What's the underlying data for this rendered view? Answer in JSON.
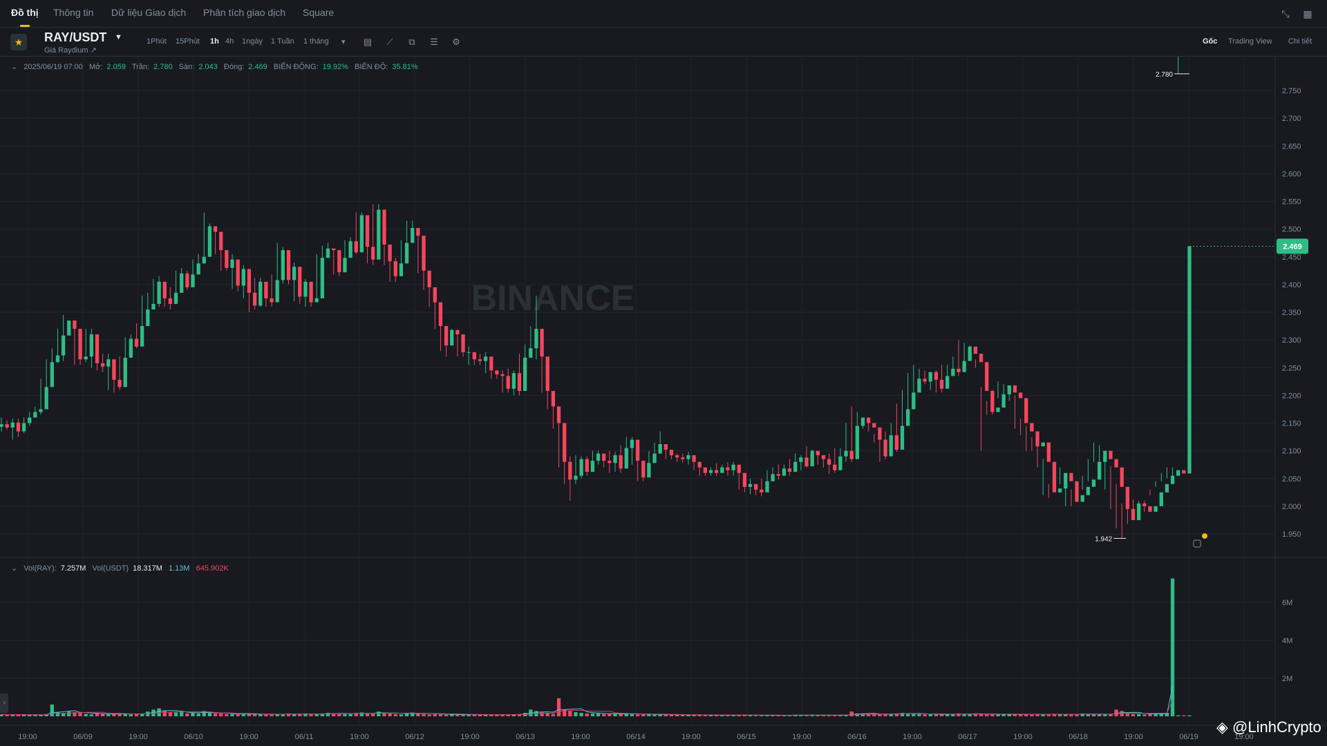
{
  "tabs": [
    {
      "label": "Đồ thị",
      "active": true
    },
    {
      "label": "Thông tin",
      "active": false
    },
    {
      "label": "Dữ liệu Giao dịch",
      "active": false
    },
    {
      "label": "Phân tích giao dịch",
      "active": false
    },
    {
      "label": "Square",
      "active": false
    }
  ],
  "pair": {
    "name": "RAY/USDT",
    "subtitle": "Giá Raydium ↗"
  },
  "intervals": [
    "1Phút",
    "15Phút",
    "1h",
    "4h",
    "1ngày",
    "1 Tuần",
    "1 tháng"
  ],
  "active_interval": "1h",
  "view_modes": [
    "Gốc",
    "Trading View",
    "Chi tiết"
  ],
  "active_view": "Gốc",
  "ohlc": {
    "date": "2025/06/19 07:00",
    "open_label": "Mở:",
    "open": "2.059",
    "high_label": "Trần:",
    "high": "2.780",
    "low_label": "Sàn:",
    "low": "2.043",
    "close_label": "Đóng:",
    "close": "2.469",
    "change_label": "BIẾN ĐỘNG:",
    "change": "19.92%",
    "amplitude_label": "BIÊN ĐỘ:",
    "amplitude": "35.81%"
  },
  "volume_legend": {
    "ray_label": "Vol(RAY):",
    "ray": "7.257M",
    "usdt_label": "Vol(USDT)",
    "usdt": "18.317M",
    "ma1": "1.13M",
    "ma2": "645.902K"
  },
  "watermark_brand": "BINANCE",
  "credit": "@LinhCrypto",
  "colors": {
    "up": "#2ebd85",
    "down": "#f6465d",
    "accent": "#f0b90b",
    "background": "#181a20"
  },
  "icons": [
    "star-icon",
    "caret-down-icon",
    "calendar-icon",
    "indicator-icon",
    "candle-type-icon",
    "layout-icon",
    "settings-icon",
    "collapse-icon",
    "grid-icon"
  ],
  "chart_data": {
    "type": "candlestick",
    "interval": "1h",
    "ylim": [
      1.92,
      2.8
    ],
    "y_ticks": [
      1.95,
      2.0,
      2.05,
      2.1,
      2.15,
      2.2,
      2.25,
      2.3,
      2.35,
      2.4,
      2.45,
      2.5,
      2.55,
      2.6,
      2.65,
      2.7,
      2.75
    ],
    "y_tick_labels": [
      "1.950",
      "2.000",
      "2.050",
      "2.100",
      "2.150",
      "2.200",
      "2.250",
      "2.300",
      "2.350",
      "2.400",
      "2.450",
      "2.500",
      "2.550",
      "2.600",
      "2.650",
      "2.700",
      "2.750"
    ],
    "x_tick_labels": [
      "19:00",
      "06/09",
      "19:00",
      "06/10",
      "19:00",
      "06/11",
      "19:00",
      "06/12",
      "19:00",
      "06/13",
      "19:00",
      "06/14",
      "19:00",
      "06/15",
      "19:00",
      "06/16",
      "19:00",
      "06/17",
      "19:00",
      "06/18",
      "19:00",
      "06/19",
      "19:00"
    ],
    "vol_ticks": [
      "2M",
      "4M",
      "6M"
    ],
    "last_price": "2.469",
    "high_marker": "2.780",
    "low_marker": "1.942",
    "closes": [
      2.148,
      2.142,
      2.151,
      2.135,
      2.15,
      2.16,
      2.17,
      2.175,
      2.215,
      2.26,
      2.272,
      2.308,
      2.335,
      2.32,
      2.265,
      2.27,
      2.31,
      2.258,
      2.252,
      2.265,
      2.228,
      2.215,
      2.268,
      2.302,
      2.288,
      2.325,
      2.355,
      2.365,
      2.405,
      2.375,
      2.365,
      2.385,
      2.42,
      2.395,
      2.418,
      2.438,
      2.45,
      2.505,
      2.495,
      2.462,
      2.43,
      2.445,
      2.398,
      2.428,
      2.385,
      2.362,
      2.405,
      2.375,
      2.368,
      2.408,
      2.462,
      2.408,
      2.432,
      2.378,
      2.405,
      2.368,
      2.375,
      2.448,
      2.465,
      2.462,
      2.422,
      2.448,
      2.478,
      2.458,
      2.525,
      2.468,
      2.445,
      2.535,
      2.472,
      2.442,
      2.415,
      2.438,
      2.475,
      2.502,
      2.488,
      2.425,
      2.395,
      2.368,
      2.325,
      2.29,
      2.318,
      2.31,
      2.278,
      2.278,
      2.265,
      2.262,
      2.27,
      2.245,
      2.238,
      2.235,
      2.212,
      2.24,
      2.208,
      2.268,
      2.285,
      2.32,
      2.27,
      2.208,
      2.18,
      2.15,
      2.08,
      2.048,
      2.055,
      2.085,
      2.062,
      2.082,
      2.095,
      2.082,
      2.078,
      2.092,
      2.068,
      2.105,
      2.12,
      2.082,
      2.052,
      2.078,
      2.095,
      2.112,
      2.102,
      2.092,
      2.088,
      2.085,
      2.092,
      2.08,
      2.07,
      2.06,
      2.065,
      2.06,
      2.07,
      2.065,
      2.075,
      2.06,
      2.035,
      2.04,
      2.03,
      2.025,
      2.045,
      2.058,
      2.055,
      2.068,
      2.062,
      2.08,
      2.088,
      2.072,
      2.1,
      2.092,
      2.085,
      2.075,
      2.065,
      2.09,
      2.1,
      2.085,
      2.145,
      2.16,
      2.15,
      2.142,
      2.12,
      2.09,
      2.128,
      2.102,
      2.145,
      2.175,
      2.205,
      2.23,
      2.225,
      2.242,
      2.228,
      2.212,
      2.235,
      2.248,
      2.242,
      2.262,
      2.288,
      2.275,
      2.26,
      2.208,
      2.17,
      2.178,
      2.202,
      2.218,
      2.205,
      2.195,
      2.15,
      2.135,
      2.108,
      2.115,
      2.08,
      2.025,
      2.032,
      2.06,
      2.045,
      2.008,
      2.02,
      2.035,
      2.048,
      2.08,
      2.1,
      2.085,
      2.07,
      2.035,
      1.995,
      1.975,
      2.005,
      2.0,
      1.99,
      2.0,
      2.025,
      2.04,
      2.055,
      2.065,
      2.059,
      2.469
    ],
    "highs": [
      2.16,
      2.155,
      2.158,
      2.158,
      2.16,
      2.17,
      2.18,
      2.23,
      2.265,
      2.285,
      2.32,
      2.345,
      2.335,
      2.325,
      2.285,
      2.32,
      2.32,
      2.268,
      2.275,
      2.275,
      2.238,
      2.27,
      2.305,
      2.31,
      2.33,
      2.38,
      2.385,
      2.41,
      2.415,
      2.385,
      2.395,
      2.425,
      2.43,
      2.425,
      2.445,
      2.455,
      2.53,
      2.51,
      2.5,
      2.468,
      2.448,
      2.455,
      2.432,
      2.435,
      2.392,
      2.412,
      2.412,
      2.388,
      2.418,
      2.475,
      2.468,
      2.44,
      2.44,
      2.412,
      2.41,
      2.385,
      2.455,
      2.47,
      2.475,
      2.465,
      2.455,
      2.48,
      2.485,
      2.53,
      2.53,
      2.475,
      2.545,
      2.545,
      2.478,
      2.45,
      2.448,
      2.48,
      2.515,
      2.515,
      2.495,
      2.432,
      2.405,
      2.375,
      2.33,
      2.325,
      2.32,
      2.318,
      2.29,
      2.288,
      2.272,
      2.275,
      2.278,
      2.255,
      2.245,
      2.245,
      2.248,
      2.245,
      2.275,
      2.292,
      2.325,
      2.38,
      2.278,
      2.215,
      2.185,
      2.155,
      2.09,
      2.09,
      2.092,
      2.09,
      2.09,
      2.1,
      2.1,
      2.09,
      2.1,
      2.098,
      2.11,
      2.125,
      2.125,
      2.088,
      2.082,
      2.1,
      2.115,
      2.135,
      2.108,
      2.098,
      2.095,
      2.095,
      2.098,
      2.085,
      2.075,
      2.07,
      2.07,
      2.078,
      2.075,
      2.08,
      2.08,
      2.065,
      2.045,
      2.05,
      2.04,
      2.05,
      2.065,
      2.07,
      2.075,
      2.075,
      2.085,
      2.095,
      2.092,
      2.108,
      2.102,
      2.092,
      2.085,
      2.095,
      2.105,
      2.105,
      2.15,
      2.18,
      2.17,
      2.155,
      2.15,
      2.13,
      2.135,
      2.135,
      2.15,
      2.185,
      2.21,
      2.24,
      2.255,
      2.248,
      2.245,
      2.235,
      2.245,
      2.255,
      2.255,
      2.27,
      2.3,
      2.295,
      2.29,
      2.265,
      2.215,
      2.19,
      2.21,
      2.225,
      2.22,
      2.205,
      2.2,
      2.158,
      2.145,
      2.125,
      2.12,
      2.085,
      2.04,
      2.07,
      2.07,
      2.05,
      2.03,
      2.04,
      2.055,
      2.085,
      2.115,
      2.11,
      2.09,
      2.072,
      2.04,
      2.005,
      2.01,
      2.012,
      2.01,
      2.01,
      2.03,
      2.045,
      2.06,
      2.07,
      2.07,
      2.78
    ],
    "lows": [
      2.135,
      2.138,
      2.12,
      2.125,
      2.132,
      2.145,
      2.16,
      2.165,
      2.175,
      2.25,
      2.258,
      2.262,
      2.31,
      2.255,
      2.255,
      2.26,
      2.25,
      2.245,
      2.242,
      2.21,
      2.205,
      2.21,
      2.262,
      2.28,
      2.285,
      2.32,
      2.34,
      2.355,
      2.36,
      2.36,
      2.355,
      2.38,
      2.388,
      2.39,
      2.412,
      2.43,
      2.45,
      2.485,
      2.455,
      2.425,
      2.425,
      2.392,
      2.388,
      2.375,
      2.35,
      2.355,
      2.36,
      2.36,
      2.36,
      2.405,
      2.402,
      2.4,
      2.37,
      2.365,
      2.36,
      2.36,
      2.37,
      2.44,
      2.455,
      2.418,
      2.415,
      2.44,
      2.45,
      2.455,
      2.46,
      2.438,
      2.435,
      2.465,
      2.435,
      2.405,
      2.405,
      2.43,
      2.47,
      2.48,
      2.42,
      2.39,
      2.36,
      2.32,
      2.28,
      2.27,
      2.3,
      2.27,
      2.27,
      2.255,
      2.255,
      2.255,
      2.24,
      2.23,
      2.23,
      2.205,
      2.205,
      2.2,
      2.2,
      2.26,
      2.28,
      2.265,
      2.205,
      2.175,
      2.14,
      2.07,
      2.04,
      2.01,
      2.04,
      2.05,
      2.055,
      2.075,
      2.075,
      2.07,
      2.06,
      2.062,
      2.06,
      2.098,
      2.075,
      2.045,
      2.045,
      2.07,
      2.09,
      2.095,
      2.085,
      2.085,
      2.08,
      2.078,
      2.075,
      2.065,
      2.055,
      2.055,
      2.055,
      2.055,
      2.062,
      2.055,
      2.055,
      2.03,
      2.025,
      2.022,
      2.02,
      2.018,
      2.04,
      2.045,
      2.048,
      2.055,
      2.055,
      2.075,
      2.065,
      2.07,
      2.08,
      2.075,
      2.07,
      2.058,
      2.06,
      2.088,
      2.08,
      2.08,
      2.14,
      2.14,
      2.135,
      2.115,
      2.08,
      2.085,
      2.095,
      2.098,
      2.135,
      2.17,
      2.2,
      2.215,
      2.22,
      2.21,
      2.205,
      2.205,
      2.23,
      2.235,
      2.235,
      2.255,
      2.265,
      2.25,
      2.1,
      2.165,
      2.165,
      2.195,
      2.2,
      2.19,
      2.14,
      2.128,
      2.1,
      2.1,
      2.07,
      2.02,
      2.015,
      2.025,
      2.04,
      2.0,
      2.0,
      2.01,
      2.03,
      2.045,
      2.08,
      2.075,
      2.03,
      1.995,
      1.96,
      1.942,
      1.968,
      1.985,
      1.985,
      1.99,
      2.02,
      2.035,
      2.045,
      2.05,
      2.043
    ],
    "volumes_m": [
      0.1,
      0.08,
      0.08,
      0.1,
      0.08,
      0.07,
      0.06,
      0.08,
      0.12,
      0.62,
      0.2,
      0.18,
      0.25,
      0.22,
      0.18,
      0.12,
      0.1,
      0.15,
      0.12,
      0.1,
      0.15,
      0.12,
      0.15,
      0.1,
      0.12,
      0.15,
      0.25,
      0.35,
      0.42,
      0.3,
      0.2,
      0.2,
      0.25,
      0.15,
      0.18,
      0.15,
      0.28,
      0.18,
      0.15,
      0.15,
      0.12,
      0.12,
      0.1,
      0.1,
      0.15,
      0.1,
      0.12,
      0.1,
      0.1,
      0.12,
      0.1,
      0.15,
      0.12,
      0.1,
      0.15,
      0.1,
      0.12,
      0.15,
      0.18,
      0.15,
      0.15,
      0.12,
      0.12,
      0.18,
      0.2,
      0.15,
      0.15,
      0.25,
      0.15,
      0.18,
      0.12,
      0.1,
      0.18,
      0.2,
      0.15,
      0.12,
      0.1,
      0.15,
      0.1,
      0.08,
      0.1,
      0.08,
      0.08,
      0.1,
      0.08,
      0.08,
      0.1,
      0.08,
      0.08,
      0.1,
      0.08,
      0.1,
      0.12,
      0.18,
      0.35,
      0.28,
      0.2,
      0.15,
      0.12,
      0.95,
      0.35,
      0.28,
      0.22,
      0.18,
      0.15,
      0.15,
      0.15,
      0.12,
      0.12,
      0.15,
      0.12,
      0.15,
      0.12,
      0.1,
      0.1,
      0.1,
      0.08,
      0.1,
      0.08,
      0.08,
      0.08,
      0.08,
      0.07,
      0.08,
      0.06,
      0.07,
      0.06,
      0.06,
      0.08,
      0.07,
      0.06,
      0.08,
      0.06,
      0.07,
      0.06,
      0.05,
      0.06,
      0.05,
      0.06,
      0.05,
      0.06,
      0.08,
      0.07,
      0.06,
      0.08,
      0.06,
      0.07,
      0.06,
      0.06,
      0.08,
      0.06,
      0.25,
      0.15,
      0.15,
      0.12,
      0.1,
      0.1,
      0.12,
      0.12,
      0.15,
      0.18,
      0.15,
      0.12,
      0.12,
      0.1,
      0.1,
      0.12,
      0.1,
      0.1,
      0.12,
      0.15,
      0.12,
      0.12,
      0.15,
      0.12,
      0.1,
      0.12,
      0.1,
      0.1,
      0.1,
      0.12,
      0.1,
      0.1,
      0.12,
      0.12,
      0.1,
      0.1,
      0.12,
      0.1,
      0.1,
      0.1,
      0.12,
      0.15,
      0.12,
      0.1,
      0.1,
      0.1,
      0.12,
      0.35,
      0.28,
      0.15,
      0.12,
      0.12,
      0.1,
      0.15,
      0.12,
      0.12,
      0.18,
      7.257
    ]
  }
}
